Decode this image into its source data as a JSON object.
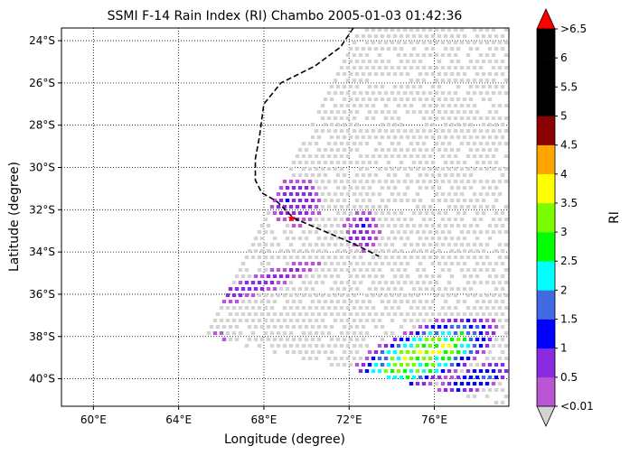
{
  "chart_data": {
    "type": "map-scatter",
    "title": "SSMI F-14 Rain Index (RI) Chambo 2005-01-03 01:42:36",
    "xlabel": "Longitude (degree)",
    "ylabel": "Latitude (degree)",
    "xlim": [
      58.5,
      79.5
    ],
    "ylim": [
      -41.3,
      -23.4
    ],
    "grid": true,
    "xticks": [
      {
        "value": 60,
        "label": "60°E"
      },
      {
        "value": 64,
        "label": "64°E"
      },
      {
        "value": 68,
        "label": "68°E"
      },
      {
        "value": 72,
        "label": "72°E"
      },
      {
        "value": 76,
        "label": "76°E"
      }
    ],
    "yticks": [
      {
        "value": -24,
        "label": "24°S"
      },
      {
        "value": -26,
        "label": "26°S"
      },
      {
        "value": -28,
        "label": "28°S"
      },
      {
        "value": -30,
        "label": "30°S"
      },
      {
        "value": -32,
        "label": "32°S"
      },
      {
        "value": -34,
        "label": "34°S"
      },
      {
        "value": -36,
        "label": "36°S"
      },
      {
        "value": -38,
        "label": "38°S"
      },
      {
        "value": -40,
        "label": "40°S"
      }
    ],
    "colorbar": {
      "label": "RI",
      "under_label": "<0.01",
      "over_label": ">6.5",
      "under_color": "#d3d3d3",
      "over_color": "#ff0000",
      "levels": [
        0.01,
        0.5,
        1,
        1.5,
        2,
        2.5,
        3,
        3.5,
        4,
        4.5,
        5,
        5.5,
        6,
        6.5
      ],
      "tick_labels": [
        "0.5",
        "1",
        "1.5",
        "2",
        "2.5",
        "3",
        "3.5",
        "4",
        "4.5",
        "5",
        "5.5",
        "6"
      ],
      "bins": [
        {
          "range": "0.01-0.5",
          "color": "#ba55d3"
        },
        {
          "range": "0.5-1",
          "color": "#8a2be2"
        },
        {
          "range": "1-1.5",
          "color": "#0000ff"
        },
        {
          "range": "1.5-2",
          "color": "#4169e1"
        },
        {
          "range": "2-2.5",
          "color": "#00ffff"
        },
        {
          "range": "2.5-3",
          "color": "#00ff00"
        },
        {
          "range": "3-3.5",
          "color": "#7cfc00"
        },
        {
          "range": "3.5-4",
          "color": "#ffff00"
        },
        {
          "range": "4-4.5",
          "color": "#ffa500"
        },
        {
          "range": "4.5-5",
          "color": "#8b0000"
        },
        {
          "range": "5-5.5",
          "color": "#000000"
        },
        {
          "range": "5.5-6",
          "color": "#000000"
        },
        {
          "range": "6-6.5",
          "color": "#000000"
        }
      ]
    },
    "storm_track": {
      "style": "dashed",
      "points": [
        [
          72.2,
          -23.4
        ],
        [
          71.6,
          -24.3
        ],
        [
          70.4,
          -25.2
        ],
        [
          68.8,
          -26.0
        ],
        [
          68.0,
          -27.0
        ],
        [
          67.8,
          -28.5
        ],
        [
          67.6,
          -29.6
        ],
        [
          67.6,
          -30.6
        ],
        [
          67.9,
          -31.2
        ],
        [
          68.6,
          -31.6
        ],
        [
          69.4,
          -32.4
        ],
        [
          70.8,
          -33.0
        ],
        [
          72.2,
          -33.6
        ],
        [
          73.4,
          -34.2
        ]
      ],
      "current_position": {
        "lon": 69.3,
        "lat": -32.4,
        "color": "#ff0000"
      }
    },
    "swath": {
      "description": "satellite swath of grey (<0.01) samples",
      "corners": [
        [
          72.4,
          -23.4
        ],
        [
          79.5,
          -23.4
        ],
        [
          79.5,
          -41.3
        ],
        [
          65.3,
          -38.0
        ]
      ]
    },
    "rain_regions": [
      {
        "name": "rainband-south",
        "lon": 75.5,
        "lat": -38.9,
        "lon_radius": 3.8,
        "lat_radius": 1.4,
        "tilt_deg": -22,
        "peak_ri": 3.3
      },
      {
        "name": "rainband-east-tail",
        "lon": 78.0,
        "lat": -40.0,
        "lon_radius": 2.0,
        "lat_radius": 0.6,
        "tilt_deg": -20,
        "peak_ri": 1.6
      },
      {
        "name": "convection-near-center",
        "lon": 69.5,
        "lat": -31.6,
        "lon_radius": 1.3,
        "lat_radius": 1.2,
        "tilt_deg": 0,
        "peak_ri": 1.0
      },
      {
        "name": "band-north-east",
        "lon": 72.6,
        "lat": -33.0,
        "lon_radius": 0.9,
        "lat_radius": 1.0,
        "tilt_deg": 0,
        "peak_ri": 0.9
      },
      {
        "name": "outer-arc",
        "lon": 67.8,
        "lat": -35.5,
        "lon_radius": 3.2,
        "lat_radius": 0.5,
        "tilt_deg": -20,
        "peak_ri": 0.8
      },
      {
        "name": "west-edge-patch",
        "lon": 65.8,
        "lat": -38.5,
        "lon_radius": 0.6,
        "lat_radius": 0.9,
        "tilt_deg": 0,
        "peak_ri": 0.3
      }
    ]
  }
}
